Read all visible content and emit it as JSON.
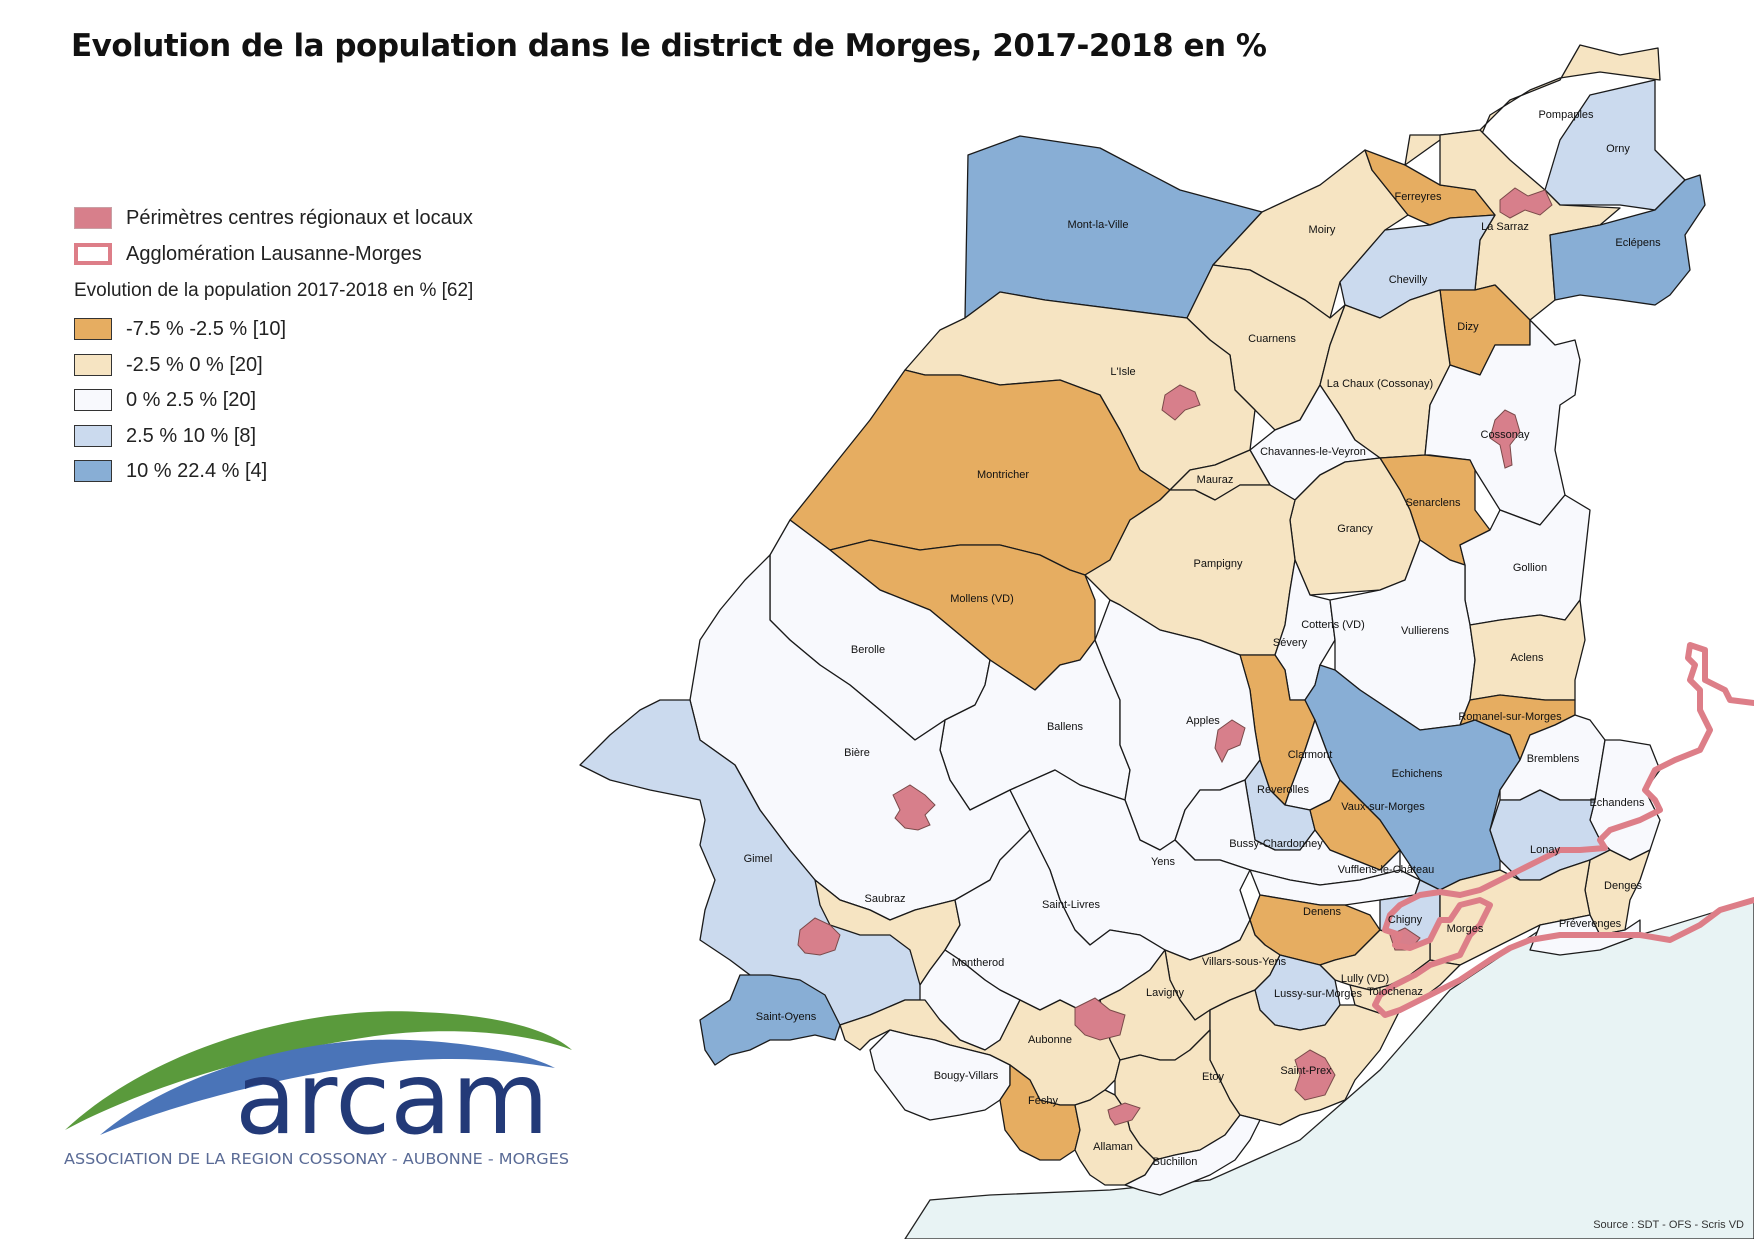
{
  "title": "Evolution de la population dans le district de Morges, 2017-2018 en %",
  "legend": {
    "perimetres": "Périmètres centres régionaux et locaux",
    "agglomeration": "Agglomération Lausanne-Morges",
    "heading": "Evolution de la population 2017-2018 en % [62]",
    "classes": [
      {
        "label": "-7.5 %  -2.5 % [10]",
        "color": "#e6ad61"
      },
      {
        "label": "-2.5 %  0 % [20]",
        "color": "#f6e4c2"
      },
      {
        "label": "0 % 2.5 %  [20]",
        "color": "#f8f9fd"
      },
      {
        "label": "2.5 % 10 %  [8]",
        "color": "#cbdaee"
      },
      {
        "label": "10 % 22.4 %  [4]",
        "color": "#88aed5"
      }
    ],
    "centre_color": "#d77f8b",
    "agglo_color": "#dd7e88"
  },
  "communes": [
    "Mont-la-Ville",
    "Pompaples",
    "Orny",
    "Ferreyres",
    "La Sarraz",
    "Moiry",
    "Eclépens",
    "Chevilly",
    "Dizy",
    "Cuarnens",
    "L'Isle",
    "La Chaux (Cossonay)",
    "Cossonay",
    "Montricher",
    "Chavannes-le-Veyron",
    "Mauraz",
    "Senarclens",
    "Grancy",
    "Pampigny",
    "Gollion",
    "Mollens (VD)",
    "Cottens (VD)",
    "Vullierens",
    "Sévery",
    "Berolle",
    "Aclens",
    "Romanel-sur-Morges",
    "Ballens",
    "Apples",
    "Bière",
    "Clarmont",
    "Bremblens",
    "Echichens",
    "Reverolles",
    "Vaux-sur-Morges",
    "Echandens",
    "Bussy-Chardonney",
    "Gimel",
    "Yens",
    "Lonay",
    "Vufflens-le-Château",
    "Denges",
    "Saubraz",
    "Saint-Livres",
    "Denens",
    "Chigny",
    "Morges",
    "Préverenges",
    "Montherod",
    "Villars-sous-Yens",
    "Lully (VD)",
    "Lussy-sur-Morges",
    "Tolochenaz",
    "Lavigny",
    "Saint-Oyens",
    "Aubonne",
    "Saint-Prex",
    "Etoy",
    "Bougy-Villars",
    "Féchy",
    "Allaman",
    "Buchillon"
  ],
  "logo": {
    "name": "arcam",
    "subtitle": "ASSOCIATION DE LA REGION COSSONAY - AUBONNE - MORGES",
    "green": "#5a9a3c",
    "blue": "#4a74b8",
    "navy": "#233a78"
  },
  "source": "Source : SDT - OFS - Scris VD",
  "lake_color": "#e8f3f4"
}
